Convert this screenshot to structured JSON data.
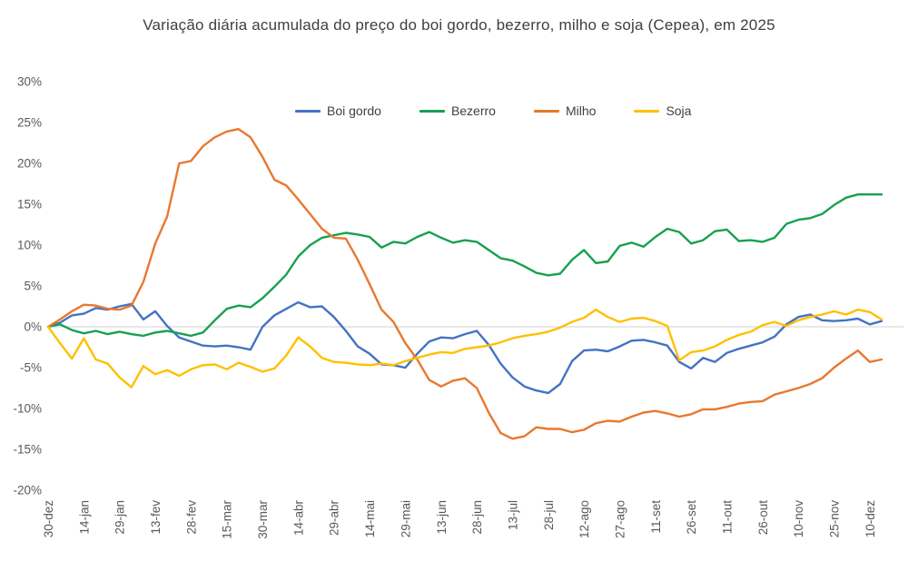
{
  "title": "Variação diária acumulada do preço do boi gordo, bezerro, milho e soja (Cepea), em 2025",
  "colors": {
    "boi_gordo": "#4472C4",
    "bezerro": "#18A050",
    "milho": "#E8782F",
    "soja": "#FFC000",
    "zero_line": "#D9D9D9",
    "axis_text": "#595959",
    "title_text": "#3F3F3F"
  },
  "axes": {
    "y_ticks": [
      {
        "value": 30,
        "label": "30%"
      },
      {
        "value": 25,
        "label": "25%"
      },
      {
        "value": 20,
        "label": "20%"
      },
      {
        "value": 15,
        "label": "15%"
      },
      {
        "value": 10,
        "label": "10%"
      },
      {
        "value": 5,
        "label": "5%"
      },
      {
        "value": 0,
        "label": "0%"
      },
      {
        "value": -5,
        "label": "-5%"
      },
      {
        "value": -10,
        "label": "-10%"
      },
      {
        "value": -15,
        "label": "-15%"
      },
      {
        "value": -20,
        "label": "-20%"
      }
    ]
  },
  "chart_data": {
    "type": "line",
    "title": "Variação diária acumulada do preço do boi gordo, bezerro, milho e soja (Cepea), em 2025",
    "xlabel": "",
    "ylabel": "",
    "ylim": [
      -20,
      30
    ],
    "y_format": "percent",
    "grid": "horizontal zero-line only",
    "legend_position": "top-center-inside",
    "x_tick_labels": [
      "30-dez",
      "14-jan",
      "29-jan",
      "13-fev",
      "28-fev",
      "15-mar",
      "30-mar",
      "14-abr",
      "29-abr",
      "14-mai",
      "29-mai",
      "13-jun",
      "28-jun",
      "13-jul",
      "28-jul",
      "12-ago",
      "27-ago",
      "11-set",
      "26-set",
      "11-out",
      "26-out",
      "10-nov",
      "25-nov",
      "10-dez"
    ],
    "x_step_days": 5,
    "note": "values sampled every ~5 days; x tick labels fall on every 3rd sample",
    "series": [
      {
        "name": "Boi gordo",
        "color": "#4472C4",
        "values": [
          0.0,
          0.5,
          1.4,
          1.6,
          2.3,
          2.1,
          2.5,
          2.8,
          0.9,
          1.9,
          0.1,
          -1.3,
          -1.8,
          -2.3,
          -2.4,
          -2.3,
          -2.5,
          -2.8,
          0.0,
          1.4,
          2.2,
          3.0,
          2.4,
          2.5,
          1.2,
          -0.5,
          -2.4,
          -3.3,
          -4.6,
          -4.7,
          -5.0,
          -3.3,
          -1.8,
          -1.3,
          -1.4,
          -0.9,
          -0.5,
          -2.2,
          -4.5,
          -6.2,
          -7.3,
          -7.8,
          -8.1,
          -7.0,
          -4.2,
          -2.9,
          -2.8,
          -3.0,
          -2.4,
          -1.7,
          -1.6,
          -1.9,
          -2.3,
          -4.3,
          -5.1,
          -3.8,
          -4.3,
          -3.2,
          -2.7,
          -2.3,
          -1.9,
          -1.2,
          0.3,
          1.2,
          1.5,
          0.8,
          0.7,
          0.8,
          1.0,
          0.3,
          0.7
        ]
      },
      {
        "name": "Bezerro",
        "color": "#18A050",
        "values": [
          0.0,
          0.3,
          -0.4,
          -0.8,
          -0.5,
          -0.9,
          -0.6,
          -0.9,
          -1.1,
          -0.7,
          -0.5,
          -0.8,
          -1.1,
          -0.7,
          0.8,
          2.2,
          2.6,
          2.4,
          3.5,
          4.9,
          6.4,
          8.6,
          10.0,
          10.9,
          11.2,
          11.5,
          11.3,
          11.0,
          9.7,
          10.4,
          10.2,
          11.0,
          11.6,
          10.9,
          10.3,
          10.6,
          10.4,
          9.4,
          8.4,
          8.1,
          7.4,
          6.6,
          6.3,
          6.5,
          8.2,
          9.4,
          7.8,
          8.0,
          9.9,
          10.3,
          9.8,
          11.0,
          12.0,
          11.6,
          10.2,
          10.6,
          11.7,
          11.9,
          10.5,
          10.6,
          10.4,
          10.9,
          12.6,
          13.1,
          13.3,
          13.8,
          14.9,
          15.8,
          16.2,
          16.2,
          16.2
        ]
      },
      {
        "name": "Milho",
        "color": "#E8782F",
        "values": [
          0.0,
          0.9,
          1.9,
          2.7,
          2.6,
          2.2,
          2.1,
          2.6,
          5.5,
          10.2,
          13.5,
          20.0,
          20.3,
          22.1,
          23.2,
          23.9,
          24.2,
          23.2,
          20.8,
          18.0,
          17.3,
          15.6,
          13.8,
          12.0,
          10.9,
          10.8,
          8.2,
          5.2,
          2.1,
          0.6,
          -2.0,
          -4.0,
          -6.5,
          -7.3,
          -6.6,
          -6.3,
          -7.5,
          -10.5,
          -13.0,
          -13.7,
          -13.4,
          -12.3,
          -12.5,
          -12.5,
          -12.9,
          -12.6,
          -11.8,
          -11.5,
          -11.6,
          -11.0,
          -10.5,
          -10.3,
          -10.6,
          -11.0,
          -10.7,
          -10.1,
          -10.1,
          -9.8,
          -9.4,
          -9.2,
          -9.1,
          -8.3,
          -7.9,
          -7.5,
          -7.0,
          -6.3,
          -5.0,
          -3.9,
          -2.9,
          -4.3,
          -4.0
        ]
      },
      {
        "name": "Soja",
        "color": "#FFC000",
        "values": [
          0.0,
          -2.0,
          -3.9,
          -1.4,
          -4.0,
          -4.5,
          -6.2,
          -7.4,
          -4.8,
          -5.8,
          -5.3,
          -6.0,
          -5.2,
          -4.7,
          -4.6,
          -5.2,
          -4.4,
          -4.9,
          -5.5,
          -5.1,
          -3.5,
          -1.3,
          -2.4,
          -3.8,
          -4.3,
          -4.4,
          -4.6,
          -4.7,
          -4.5,
          -4.7,
          -4.2,
          -3.8,
          -3.4,
          -3.1,
          -3.2,
          -2.7,
          -2.5,
          -2.3,
          -1.9,
          -1.4,
          -1.1,
          -0.9,
          -0.6,
          -0.1,
          0.6,
          1.1,
          2.1,
          1.2,
          0.6,
          1.0,
          1.1,
          0.7,
          0.1,
          -4.1,
          -3.1,
          -2.9,
          -2.4,
          -1.6,
          -1.0,
          -0.6,
          0.2,
          0.6,
          0.1,
          0.8,
          1.2,
          1.5,
          1.9,
          1.5,
          2.1,
          1.8,
          0.9
        ]
      }
    ]
  }
}
